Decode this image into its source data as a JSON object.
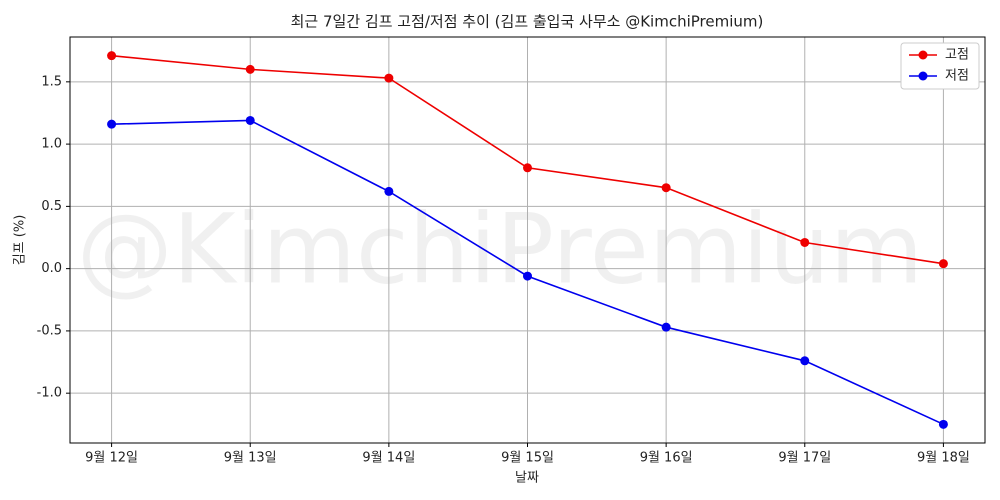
{
  "chart_data": {
    "type": "line",
    "title": "최근 7일간 김프 고점/저점 추이 (김프 출입국 사무소 @KimchiPremium)",
    "watermark": "@KimchiPremium",
    "x_label": "날짜",
    "y_label": "김프 (%)",
    "categories": [
      "9월 12일",
      "9월 13일",
      "9월 14일",
      "9월 15일",
      "9월 16일",
      "9월 17일",
      "9월 18일"
    ],
    "series": [
      {
        "name": "고점",
        "color": "#ee0000",
        "values": [
          1.71,
          1.6,
          1.53,
          0.81,
          0.65,
          0.21,
          0.04
        ]
      },
      {
        "name": "저점",
        "color": "#0000ee",
        "values": [
          1.16,
          1.19,
          0.62,
          -0.06,
          -0.47,
          -0.74,
          -1.25
        ]
      }
    ],
    "ylim": [
      -1.4,
      1.86
    ],
    "yticks": [
      {
        "value": -1,
        "label": "-1.0"
      },
      {
        "value": -0.5,
        "label": "-0.5"
      },
      {
        "value": 0,
        "label": "0.0"
      },
      {
        "value": 0.5,
        "label": "0.5"
      },
      {
        "value": 1,
        "label": "1.0"
      },
      {
        "value": 1.5,
        "label": "1.5"
      }
    ],
    "grid": true,
    "legend": "upper right"
  }
}
